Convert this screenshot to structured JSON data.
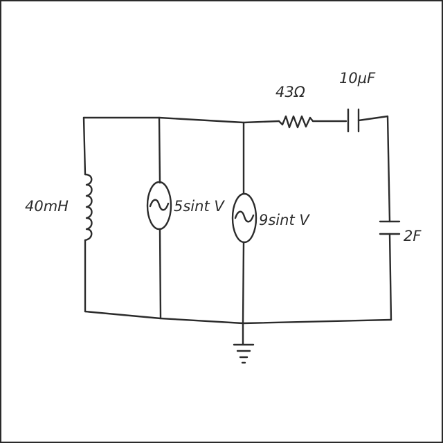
{
  "diagram": {
    "type": "circuit",
    "components": {
      "inductor": {
        "label": "40mH"
      },
      "source_1": {
        "label": "5sint V"
      },
      "source_2": {
        "label": "9sint V"
      },
      "resistor": {
        "label": "43Ω"
      },
      "capacitor_series": {
        "label": "10µF"
      },
      "capacitor_shunt": {
        "label": "2F"
      },
      "ground": {
        "label": ""
      }
    },
    "colors": {
      "ink": "#2b2b2b",
      "background": "#ffffff"
    }
  }
}
